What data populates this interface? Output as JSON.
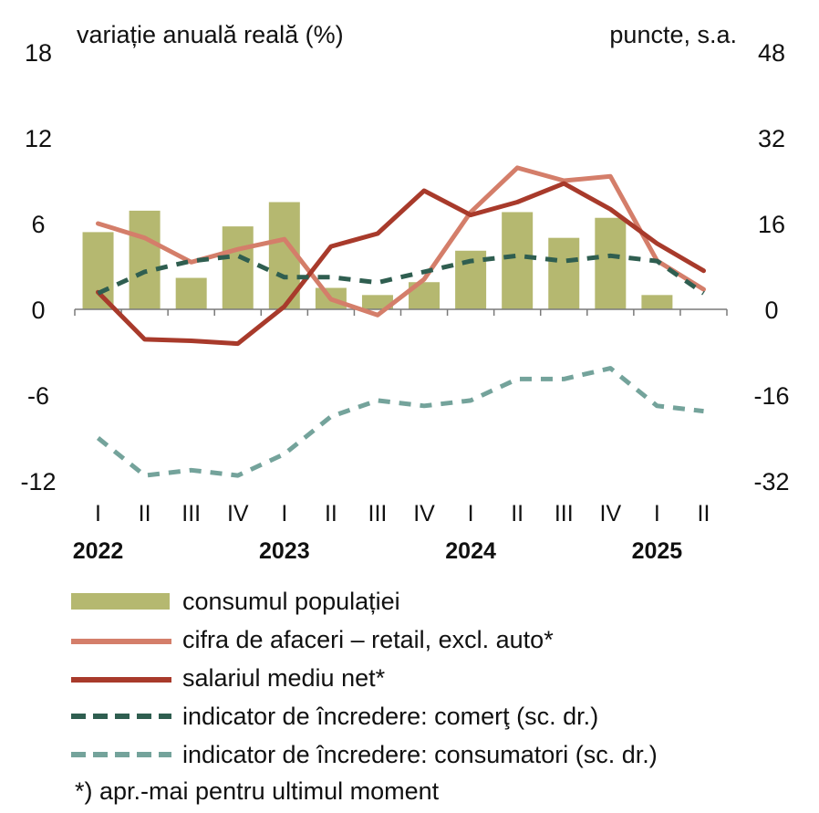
{
  "chart_data": {
    "type": "bar+line",
    "left_axis_label": "variație anuală reală (%)",
    "right_axis_label": "puncte, s.a.",
    "left_ylim": [
      -12,
      18
    ],
    "left_ticks": [
      "18",
      "12",
      "6",
      "0",
      "-6",
      "-12"
    ],
    "right_ylim": [
      -32,
      48
    ],
    "right_ticks": [
      "48",
      "32",
      "16",
      "0",
      "-16",
      "-32"
    ],
    "categories": [
      "I",
      "II",
      "III",
      "IV",
      "I",
      "II",
      "III",
      "IV",
      "I",
      "II",
      "III",
      "IV",
      "I",
      "II"
    ],
    "years": [
      {
        "label": "2022",
        "index": 0
      },
      {
        "label": "2023",
        "index": 4
      },
      {
        "label": "2024",
        "index": 8
      },
      {
        "label": "2025",
        "index": 12
      }
    ],
    "series": [
      {
        "name": "consumul populației",
        "kind": "bar",
        "axis": "left",
        "color": "#b5b870",
        "values": [
          5.4,
          6.9,
          2.2,
          5.8,
          7.5,
          1.5,
          1.0,
          1.9,
          4.1,
          6.8,
          5.0,
          6.4,
          1.0,
          null
        ]
      },
      {
        "name": "cifra de afaceri – retail, excl. auto*",
        "kind": "line",
        "axis": "left",
        "color": "#d47e6a",
        "values": [
          6.0,
          5.0,
          3.3,
          4.2,
          4.9,
          0.7,
          -0.4,
          2.1,
          6.8,
          9.9,
          9.0,
          9.3,
          3.4,
          1.4
        ]
      },
      {
        "name": "salariul mediu net*",
        "kind": "line",
        "axis": "left",
        "color": "#a83a2b",
        "values": [
          1.2,
          -2.1,
          -2.2,
          -2.4,
          0.2,
          4.4,
          5.3,
          8.3,
          6.6,
          7.5,
          8.8,
          7.0,
          4.6,
          2.7
        ]
      },
      {
        "name": "indicator de încredere: comerţ (sc. dr.)",
        "kind": "dash",
        "axis": "right",
        "color": "#2f5e50",
        "values": [
          3,
          7,
          9,
          10,
          6,
          6,
          5,
          7,
          9,
          10,
          9,
          10,
          9,
          3
        ]
      },
      {
        "name": "indicator de încredere: consumatori (sc. dr.)",
        "kind": "dash",
        "axis": "right",
        "color": "#74a39b",
        "values": [
          -24,
          -31,
          -30,
          -31,
          -27,
          -20,
          -17,
          -18,
          -17,
          -13,
          -13,
          -11,
          -18,
          -19
        ]
      }
    ]
  },
  "footnote": "*) apr.-mai pentru ultimul moment"
}
